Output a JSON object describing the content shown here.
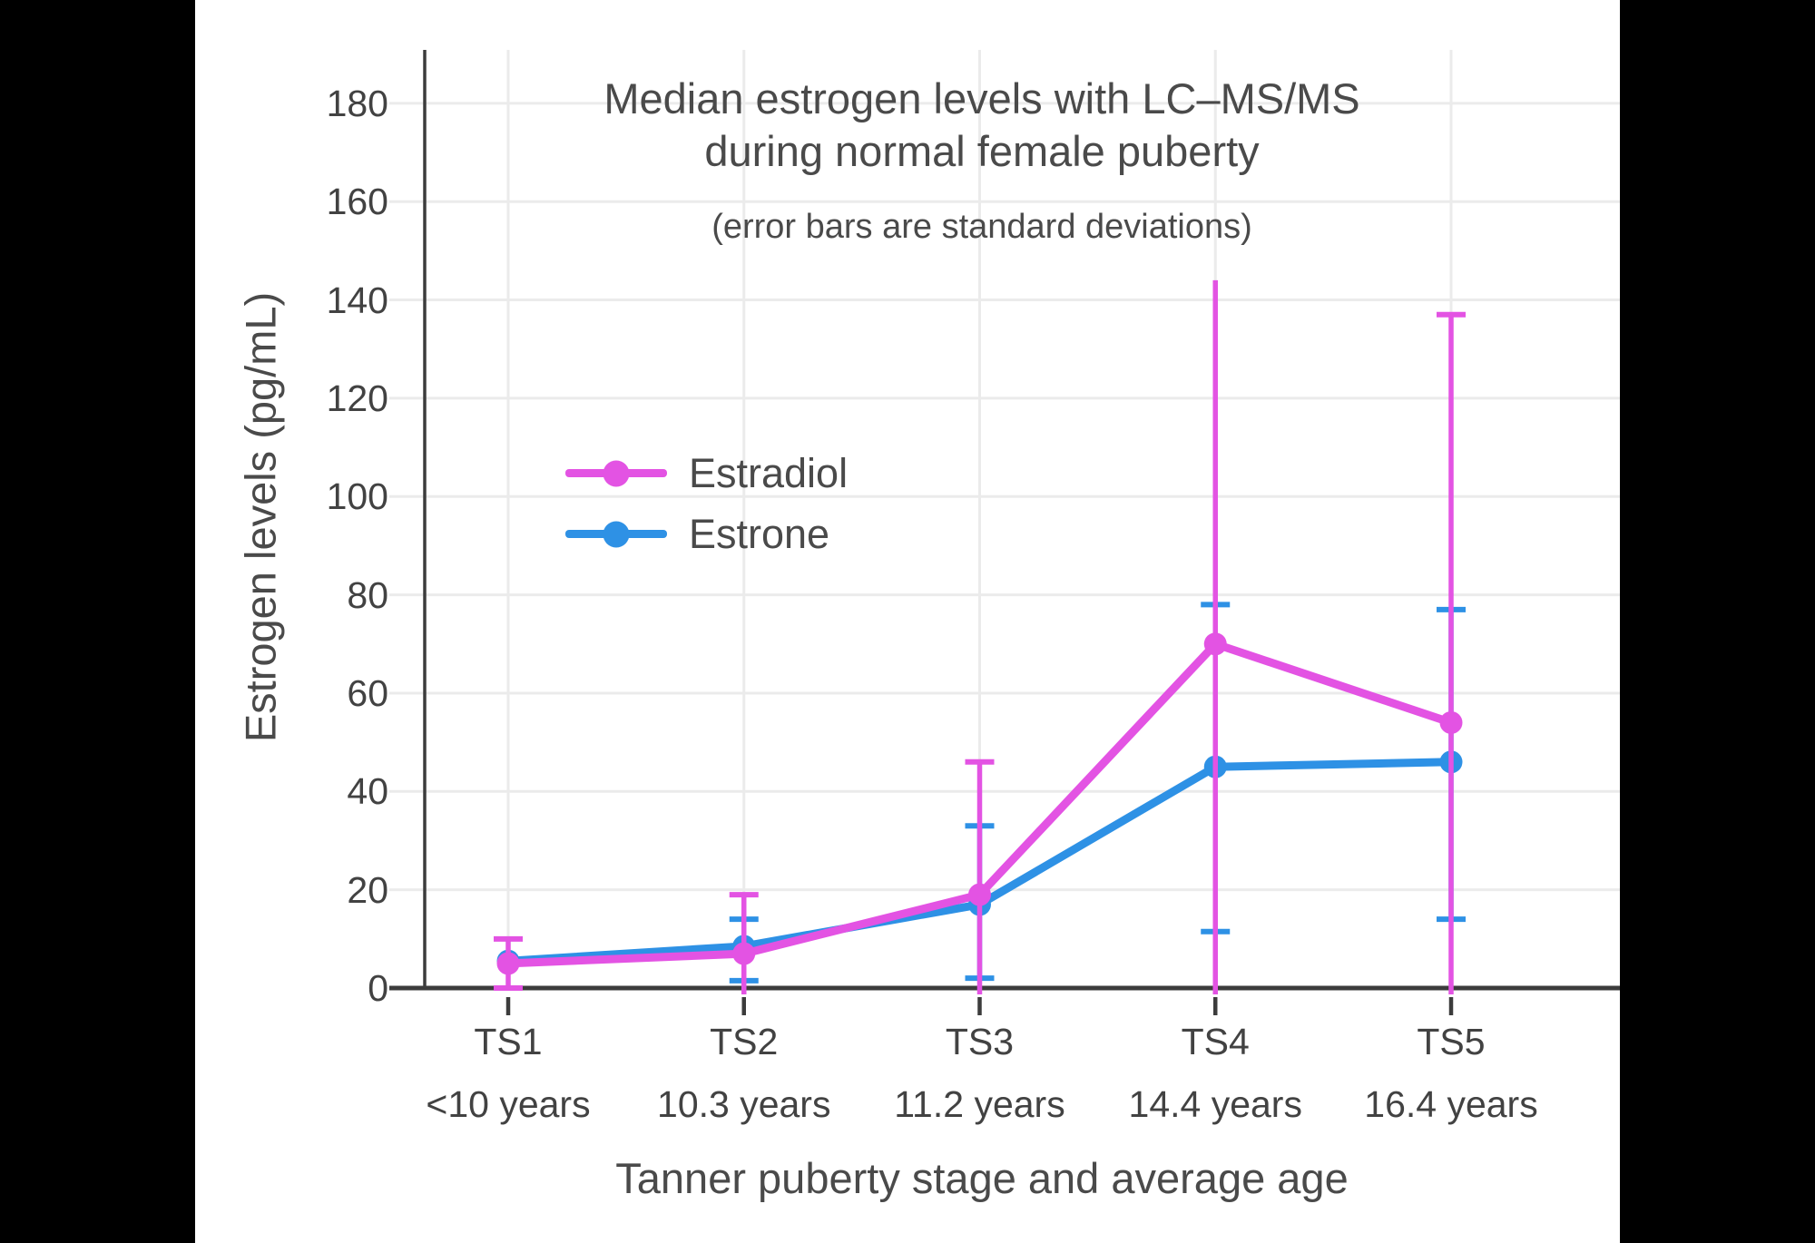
{
  "colors": {
    "letterbox": "#000000",
    "background": "#ffffff",
    "text": "#4a4a4a",
    "tick_text": "#424242",
    "axis": "#3c3c3c",
    "grid": "#ebebeb"
  },
  "chart_data": {
    "type": "line",
    "title_line1": "Median estrogen levels with LC–MS/MS",
    "title_line2": "during normal female puberty",
    "subtitle": "(error bars are standard deviations)",
    "xlabel": "Tanner puberty stage and average age",
    "ylabel": "Estrogen levels (pg/mL)",
    "categories": [
      "TS1",
      "TS2",
      "TS3",
      "TS4",
      "TS5"
    ],
    "category_ages": [
      "<10 years",
      "10.3 years",
      "11.2 years",
      "14.4 years",
      "16.4 years"
    ],
    "yticks": [
      0,
      20,
      40,
      60,
      80,
      100,
      120,
      140,
      160,
      180
    ],
    "ylim": [
      0,
      190
    ],
    "grid": true,
    "legend_position": "inside-upper-left",
    "error_bar_note": "error bars are standard deviations",
    "series": [
      {
        "name": "Estradiol",
        "color": "#E353E3",
        "values": [
          5,
          7,
          19,
          70,
          54
        ],
        "error_high": [
          10,
          19,
          46,
          144,
          137
        ],
        "error_low": [
          0,
          0,
          0,
          0,
          0
        ],
        "error_high_cap_visible": [
          true,
          true,
          true,
          false,
          true
        ],
        "error_low_cap_visible": [
          true,
          false,
          false,
          false,
          false
        ]
      },
      {
        "name": "Estrone",
        "color": "#2E91E5",
        "values": [
          5.5,
          8.5,
          17,
          45,
          46
        ],
        "error_high": [
          null,
          14,
          33,
          78,
          77
        ],
        "error_low": [
          null,
          1.5,
          2,
          11.5,
          14
        ]
      }
    ]
  }
}
